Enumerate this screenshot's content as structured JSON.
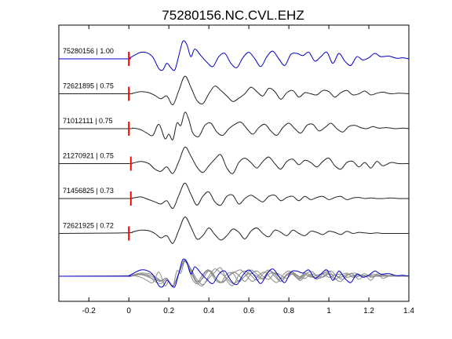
{
  "chart_data": {
    "type": "line",
    "title": "75280156.NC.CVL.EHZ",
    "xlabel": "",
    "ylabel": "",
    "xlim": [
      -0.35,
      1.4
    ],
    "x_ticks": [
      -0.2,
      0,
      0.2,
      0.4,
      0.6,
      0.8,
      1,
      1.2,
      1.4
    ],
    "x_tick_labels": [
      "-0.2",
      "0",
      "0.2",
      "0.4",
      "0.6",
      "0.8",
      "1",
      "1.2",
      "1.4"
    ],
    "grid": false,
    "pick_marker": {
      "color": "#ff0000"
    },
    "colors": {
      "template": "#0000cc",
      "match": "#222222",
      "overlay_match": "#8a8a8a"
    },
    "traces": [
      {
        "label": "75280156 | 1.00",
        "pick_time": 0.0,
        "color": "#0000cc",
        "t": [
          -0.35,
          -0.02,
          0.0,
          0.03,
          0.06,
          0.09,
          0.12,
          0.15,
          0.17,
          0.19,
          0.21,
          0.23,
          0.25,
          0.27,
          0.29,
          0.31,
          0.33,
          0.36,
          0.39,
          0.42,
          0.45,
          0.48,
          0.51,
          0.54,
          0.57,
          0.6,
          0.63,
          0.66,
          0.69,
          0.72,
          0.75,
          0.78,
          0.81,
          0.84,
          0.87,
          0.9,
          0.93,
          0.96,
          0.99,
          1.02,
          1.05,
          1.08,
          1.11,
          1.14,
          1.17,
          1.2,
          1.23,
          1.26,
          1.3,
          1.34,
          1.37,
          1.4
        ],
        "v": [
          0,
          0,
          0.05,
          0.35,
          0.6,
          0.55,
          0.15,
          -0.9,
          -1.0,
          -0.4,
          -0.8,
          -1.0,
          0.3,
          1.6,
          1.3,
          0.2,
          0.9,
          0.3,
          -0.3,
          -0.7,
          0.2,
          0.5,
          -0.4,
          -0.8,
          0.1,
          0.6,
          0.0,
          -0.7,
          0.2,
          0.7,
          0.0,
          -0.6,
          0.4,
          0.5,
          0.3,
          0.6,
          -0.2,
          0.2,
          0.6,
          -0.4,
          0.5,
          -0.2,
          -0.6,
          0.2,
          -0.1,
          0.1,
          0.5,
          0.2,
          0.25,
          0.05,
          0.1,
          0.0
        ]
      },
      {
        "label": "72621895 | 0.75",
        "pick_time": 0.0,
        "color": "#222222",
        "t": [
          -0.35,
          -0.02,
          0.02,
          0.06,
          0.1,
          0.13,
          0.16,
          0.19,
          0.22,
          0.25,
          0.28,
          0.31,
          0.34,
          0.37,
          0.4,
          0.43,
          0.46,
          0.49,
          0.52,
          0.55,
          0.58,
          0.61,
          0.64,
          0.67,
          0.7,
          0.73,
          0.76,
          0.79,
          0.82,
          0.85,
          0.88,
          0.91,
          0.94,
          0.97,
          1.0,
          1.03,
          1.06,
          1.09,
          1.12,
          1.15,
          1.18,
          1.21,
          1.24,
          1.27,
          1.31,
          1.35,
          1.4
        ],
        "v": [
          0,
          0,
          0.05,
          0.2,
          0.1,
          -0.15,
          -0.45,
          -0.2,
          -1.0,
          0.3,
          1.6,
          0.6,
          -0.6,
          -0.9,
          0.0,
          0.7,
          0.3,
          -0.2,
          -0.7,
          -0.4,
          0.0,
          0.6,
          0.2,
          -0.2,
          0.5,
          0.2,
          -0.5,
          0.1,
          0.3,
          -0.3,
          0.1,
          0.0,
          -0.1,
          0.3,
          0.2,
          -0.3,
          0.1,
          0.3,
          -0.1,
          0.0,
          0.25,
          -0.1,
          0.05,
          0.15,
          0.0,
          0.05,
          0.0
        ]
      },
      {
        "label": "71012111 | 0.75",
        "pick_time": 0.0,
        "color": "#222222",
        "t": [
          -0.35,
          -0.02,
          0.02,
          0.06,
          0.09,
          0.12,
          0.15,
          0.18,
          0.2,
          0.22,
          0.24,
          0.26,
          0.28,
          0.3,
          0.32,
          0.35,
          0.38,
          0.41,
          0.44,
          0.47,
          0.5,
          0.53,
          0.56,
          0.59,
          0.62,
          0.65,
          0.68,
          0.71,
          0.74,
          0.77,
          0.8,
          0.83,
          0.86,
          0.89,
          0.92,
          0.95,
          0.98,
          1.01,
          1.04,
          1.07,
          1.1,
          1.13,
          1.16,
          1.19,
          1.22,
          1.25,
          1.29,
          1.33,
          1.37,
          1.4
        ],
        "v": [
          0,
          0,
          0.05,
          -0.1,
          -0.4,
          -0.6,
          0.4,
          -0.9,
          -0.5,
          -1.0,
          0.5,
          0.3,
          1.5,
          0.8,
          -0.4,
          -0.7,
          0.3,
          0.5,
          -0.3,
          -0.6,
          0.0,
          0.4,
          0.6,
          0.0,
          -0.5,
          0.1,
          0.4,
          -0.2,
          -0.6,
          0.1,
          0.5,
          0.0,
          -0.4,
          0.3,
          0.4,
          -0.2,
          0.1,
          0.5,
          0.0,
          -0.3,
          0.2,
          0.3,
          0.1,
          0.0,
          0.2,
          0.05,
          0.1,
          0.0,
          0.05,
          0.0
        ]
      },
      {
        "label": "21270921 | 0.75",
        "pick_time": 0.01,
        "color": "#222222",
        "t": [
          -0.35,
          -0.02,
          0.02,
          0.06,
          0.1,
          0.13,
          0.16,
          0.19,
          0.22,
          0.25,
          0.28,
          0.31,
          0.34,
          0.37,
          0.4,
          0.43,
          0.46,
          0.49,
          0.52,
          0.55,
          0.58,
          0.61,
          0.64,
          0.67,
          0.7,
          0.73,
          0.76,
          0.79,
          0.82,
          0.85,
          0.88,
          0.91,
          0.94,
          0.97,
          1.0,
          1.03,
          1.06,
          1.09,
          1.12,
          1.15,
          1.18,
          1.21,
          1.24,
          1.27,
          1.31,
          1.35,
          1.4
        ],
        "v": [
          0,
          0,
          0.05,
          0.2,
          0.0,
          -0.5,
          -0.7,
          -0.3,
          -0.9,
          0.2,
          1.5,
          0.7,
          -0.3,
          -0.8,
          -0.2,
          0.4,
          0.8,
          -0.4,
          -0.9,
          0.1,
          0.5,
          0.1,
          -0.4,
          0.2,
          0.6,
          0.0,
          -0.5,
          0.2,
          0.4,
          -0.1,
          0.3,
          0.1,
          -0.3,
          0.2,
          0.5,
          -0.2,
          -0.5,
          0.1,
          0.2,
          -0.3,
          0.1,
          -0.4,
          0.2,
          -0.2,
          0.1,
          0.0,
          0.0
        ]
      },
      {
        "label": "71456825 | 0.73",
        "pick_time": 0.01,
        "color": "#222222",
        "t": [
          -0.35,
          -0.02,
          0.02,
          0.06,
          0.1,
          0.13,
          0.16,
          0.19,
          0.22,
          0.25,
          0.28,
          0.31,
          0.34,
          0.37,
          0.4,
          0.43,
          0.46,
          0.49,
          0.52,
          0.55,
          0.58,
          0.61,
          0.64,
          0.67,
          0.7,
          0.73,
          0.76,
          0.79,
          0.82,
          0.85,
          0.88,
          0.91,
          0.94,
          0.97,
          1.0,
          1.03,
          1.06,
          1.09,
          1.12,
          1.15,
          1.18,
          1.21,
          1.24,
          1.27,
          1.31,
          1.35,
          1.4
        ],
        "v": [
          0,
          0,
          0.05,
          0.15,
          -0.1,
          -0.3,
          -0.5,
          -0.2,
          -0.9,
          0.3,
          1.4,
          0.4,
          -0.6,
          0.2,
          0.6,
          -0.3,
          -0.6,
          0.2,
          0.3,
          -0.5,
          0.0,
          0.3,
          0.0,
          -0.3,
          0.2,
          0.3,
          -0.2,
          0.1,
          0.2,
          -0.2,
          0.2,
          -0.1,
          0.1,
          0.2,
          -0.1,
          0.1,
          0.2,
          -0.1,
          0.05,
          0.1,
          0.0,
          0.05,
          0.0,
          0.0,
          0.05,
          0.0,
          0.0
        ]
      },
      {
        "label": "72621925 | 0.72",
        "pick_time": 0.0,
        "color": "#222222",
        "t": [
          -0.35,
          -0.02,
          0.02,
          0.06,
          0.1,
          0.13,
          0.16,
          0.19,
          0.22,
          0.25,
          0.28,
          0.31,
          0.34,
          0.37,
          0.4,
          0.43,
          0.46,
          0.49,
          0.52,
          0.55,
          0.58,
          0.61,
          0.64,
          0.67,
          0.7,
          0.73,
          0.76,
          0.79,
          0.82,
          0.85,
          0.88,
          0.91,
          0.94,
          0.97,
          1.0,
          1.03,
          1.06,
          1.09,
          1.12,
          1.15,
          1.18,
          1.21,
          1.24,
          1.27,
          1.31,
          1.35,
          1.4
        ],
        "v": [
          0,
          0.05,
          0.15,
          0.3,
          0.25,
          0.0,
          -0.4,
          -0.2,
          -0.9,
          0.3,
          1.5,
          0.6,
          -0.5,
          -0.2,
          0.5,
          -0.1,
          -0.6,
          -0.2,
          0.4,
          0.1,
          -0.5,
          0.2,
          0.5,
          0.0,
          -0.3,
          0.3,
          0.1,
          -0.2,
          0.3,
          0.0,
          -0.2,
          0.2,
          0.1,
          -0.1,
          0.2,
          0.1,
          -0.1,
          0.2,
          0.0,
          0.1,
          0.05,
          0.0,
          0.05,
          0.0,
          0.0,
          0.0,
          0.0
        ]
      }
    ]
  }
}
